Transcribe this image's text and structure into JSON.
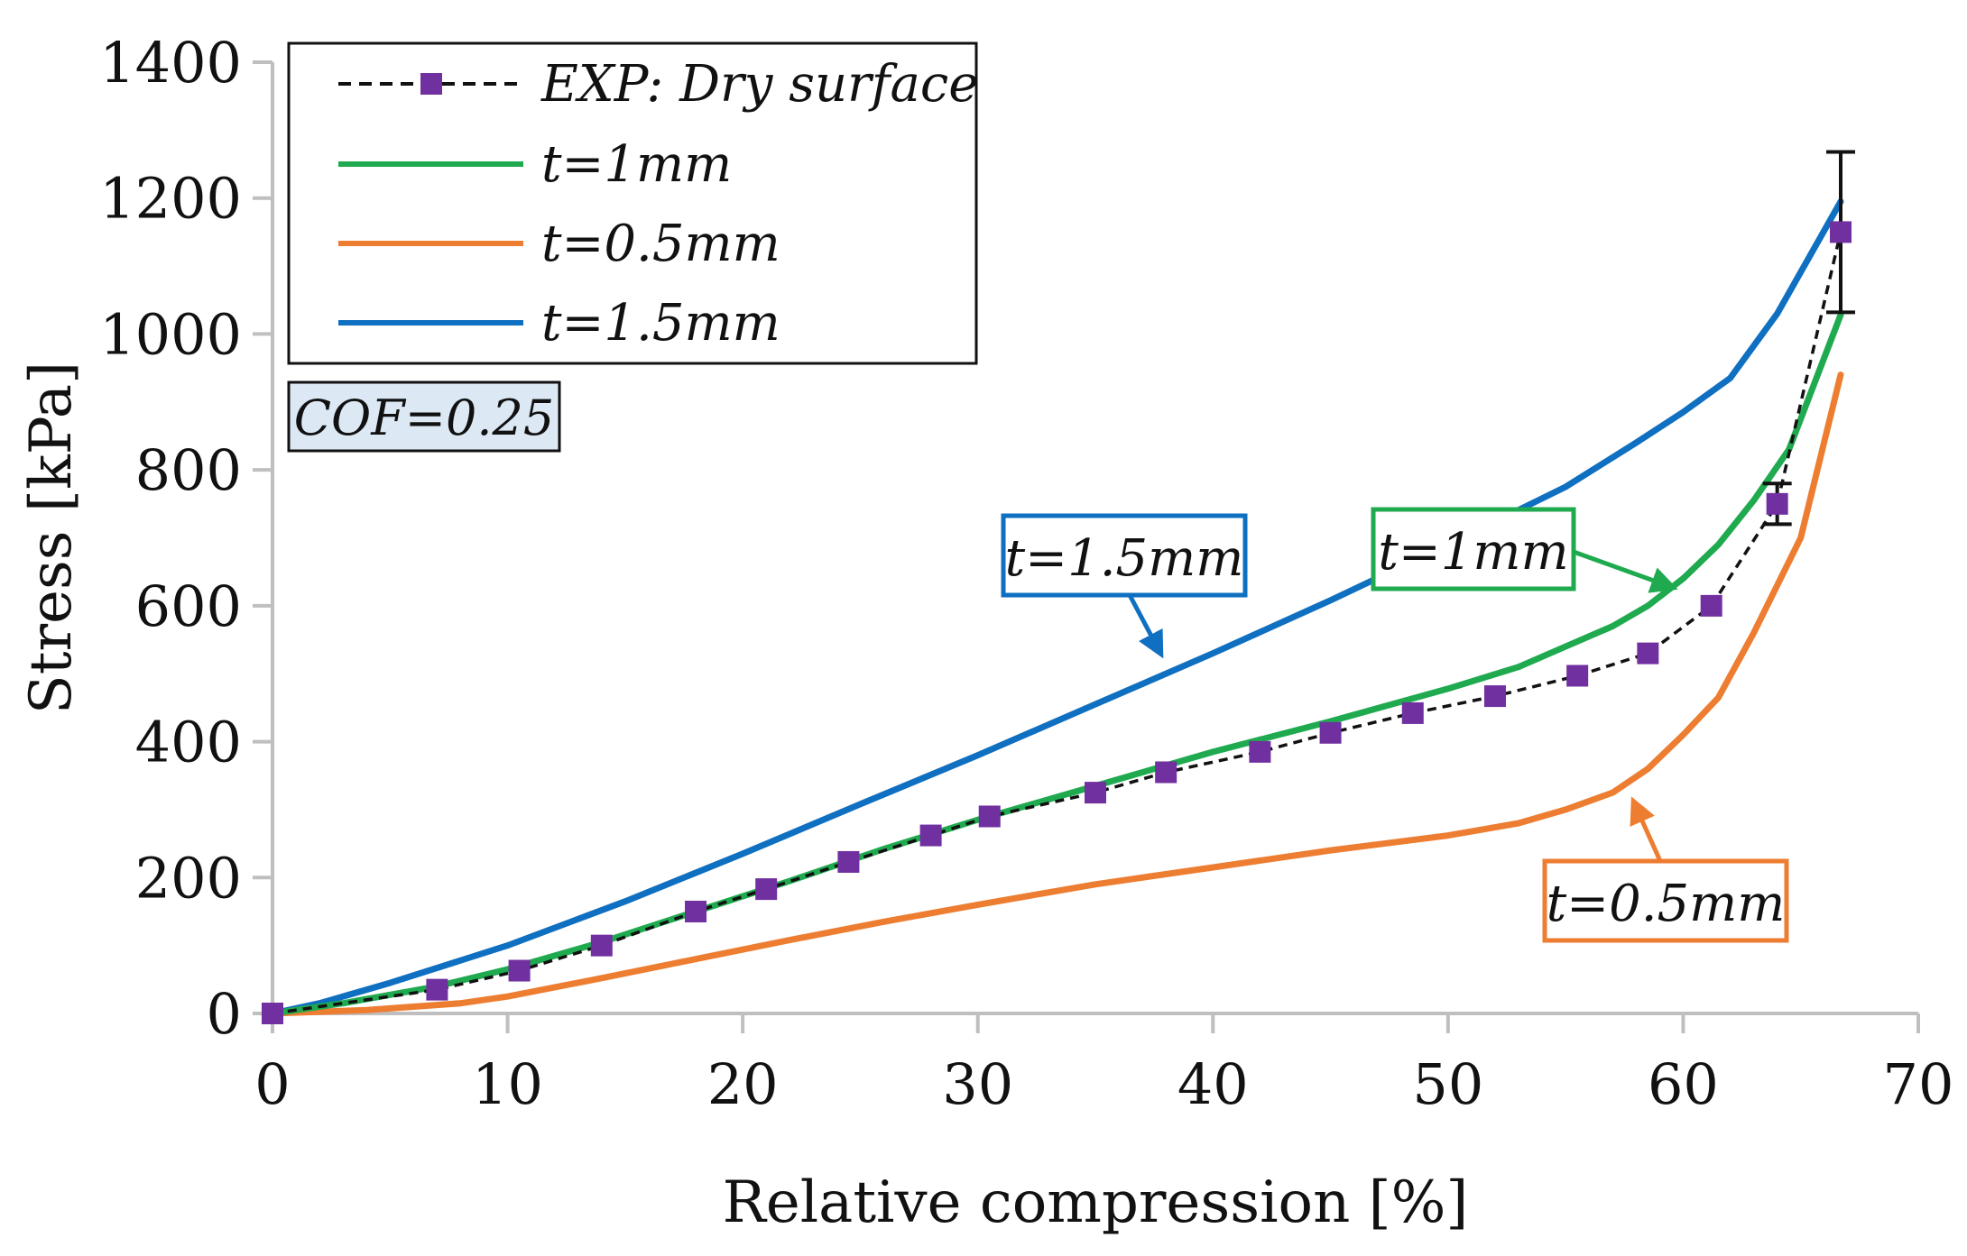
{
  "chart_data": {
    "type": "line",
    "title": "",
    "xlabel": "Relative compression [%]",
    "ylabel": "Stress [kPa]",
    "xlim": [
      0,
      70
    ],
    "ylim": [
      0,
      1400
    ],
    "xticks": [
      0,
      10,
      20,
      30,
      40,
      50,
      60,
      70
    ],
    "yticks": [
      0,
      200,
      400,
      600,
      800,
      1000,
      1200,
      1400
    ],
    "grid": false,
    "legend_position": "top-left",
    "series": [
      {
        "name": "EXP: Dry surface",
        "style": "dashed-markers",
        "color": "#111111",
        "marker_color": "#7030a0",
        "x": [
          0,
          7,
          10.5,
          14,
          18,
          21,
          24.5,
          28,
          30.5,
          35,
          38,
          42,
          45,
          48.5,
          52,
          55.5,
          58.5,
          61.2,
          64,
          66.7
        ],
        "y": [
          0,
          35,
          63,
          100,
          150,
          183,
          223,
          262,
          290,
          325,
          355,
          385,
          413,
          442,
          467,
          497,
          530,
          600,
          750,
          1150
        ],
        "error_bars": [
          {
            "x": 64,
            "low": 720,
            "high": 780
          },
          {
            "x": 66.7,
            "low": 1032,
            "high": 1268
          }
        ]
      },
      {
        "name": "t=1mm",
        "color": "#1faa4f",
        "x": [
          0,
          3,
          7,
          10,
          14,
          18,
          22,
          26,
          30,
          35,
          40,
          45,
          50,
          53,
          55,
          57,
          58.5,
          60,
          61.5,
          63,
          64.5,
          66.7
        ],
        "y": [
          0,
          15,
          40,
          65,
          105,
          150,
          195,
          242,
          285,
          335,
          385,
          430,
          478,
          510,
          540,
          570,
          600,
          640,
          690,
          755,
          830,
          1028
        ]
      },
      {
        "name": "t=0.5mm",
        "color": "#ed7d31",
        "x": [
          0,
          4,
          8,
          10,
          14,
          18,
          22,
          26,
          30,
          35,
          40,
          45,
          50,
          53,
          55,
          57,
          58.5,
          60,
          61.5,
          63,
          65,
          66.7
        ],
        "y": [
          0,
          5,
          15,
          25,
          52,
          80,
          108,
          135,
          160,
          190,
          215,
          240,
          262,
          280,
          300,
          325,
          360,
          410,
          465,
          560,
          700,
          940
        ]
      },
      {
        "name": "t=1.5mm",
        "color": "#0f6fc0",
        "x": [
          0,
          2,
          5,
          10,
          15,
          20,
          25,
          30,
          35,
          40,
          45,
          50,
          55,
          58,
          60,
          62,
          64,
          66.7
        ],
        "y": [
          0,
          15,
          45,
          100,
          165,
          235,
          308,
          380,
          455,
          530,
          608,
          690,
          775,
          840,
          885,
          935,
          1030,
          1195
        ]
      }
    ],
    "legend_entries": [
      "EXP: Dry surface",
      "t=1mm",
      "t=0.5mm",
      "t=1.5mm"
    ],
    "annotations": {
      "cof": "COF=0.25",
      "callout_15": "t=1.5mm",
      "callout_1": "t=1mm",
      "callout_05": "t=0.5mm"
    }
  }
}
